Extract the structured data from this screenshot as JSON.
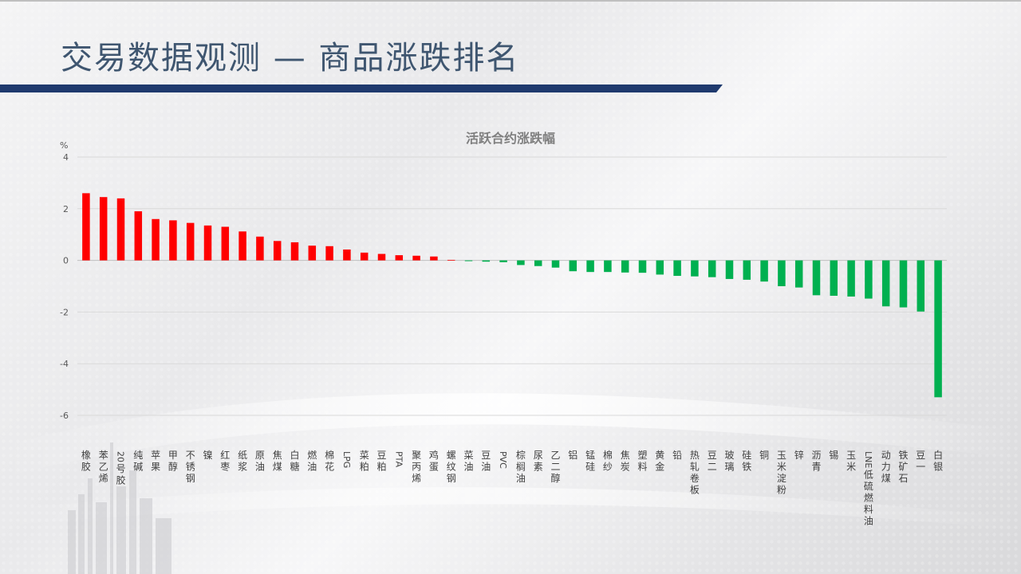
{
  "header": {
    "title": "交易数据观测 — 商品涨跌排名"
  },
  "colors": {
    "title": "#3f5670",
    "title_bar": "#1f3a6e",
    "up": "#ff0000",
    "down": "#00b050",
    "grid": "#d9d9d9"
  },
  "chart_data": {
    "type": "bar",
    "title": "活跃合约涨跌幅",
    "ylabel": "%",
    "ylim": [
      -7,
      4
    ],
    "yticks": [
      4,
      2,
      0,
      -2,
      -4,
      -6
    ],
    "grid": true,
    "legend": "none",
    "categories": [
      "橡胶",
      "苯乙烯",
      "20号胶",
      "纯碱",
      "苹果",
      "甲醇",
      "不锈钢",
      "镍",
      "红枣",
      "纸浆",
      "原油",
      "焦煤",
      "白糖",
      "燃油",
      "棉花",
      "LPG",
      "菜粕",
      "豆粕",
      "PTA",
      "聚丙烯",
      "鸡蛋",
      "螺纹钢",
      "菜油",
      "豆油",
      "PVC",
      "棕榈油",
      "尿素",
      "乙二醇",
      "铝",
      "锰硅",
      "棉纱",
      "焦炭",
      "塑料",
      "黄金",
      "铅",
      "热轧卷板",
      "豆二",
      "玻璃",
      "硅铁",
      "铜",
      "玉米淀粉",
      "锌",
      "沥青",
      "锡",
      "玉米",
      "LNE低硫燃料油",
      "动力煤",
      "铁矿石",
      "豆一",
      "白银"
    ],
    "values": [
      2.6,
      2.45,
      2.4,
      1.9,
      1.6,
      1.55,
      1.45,
      1.35,
      1.3,
      1.12,
      0.92,
      0.75,
      0.7,
      0.57,
      0.55,
      0.42,
      0.3,
      0.25,
      0.2,
      0.18,
      0.15,
      0.02,
      -0.03,
      -0.05,
      -0.07,
      -0.18,
      -0.22,
      -0.28,
      -0.42,
      -0.45,
      -0.45,
      -0.47,
      -0.48,
      -0.55,
      -0.6,
      -0.62,
      -0.65,
      -0.72,
      -0.75,
      -0.82,
      -1.0,
      -1.05,
      -1.35,
      -1.37,
      -1.4,
      -1.48,
      -1.78,
      -1.82,
      -1.98,
      -5.3
    ]
  }
}
